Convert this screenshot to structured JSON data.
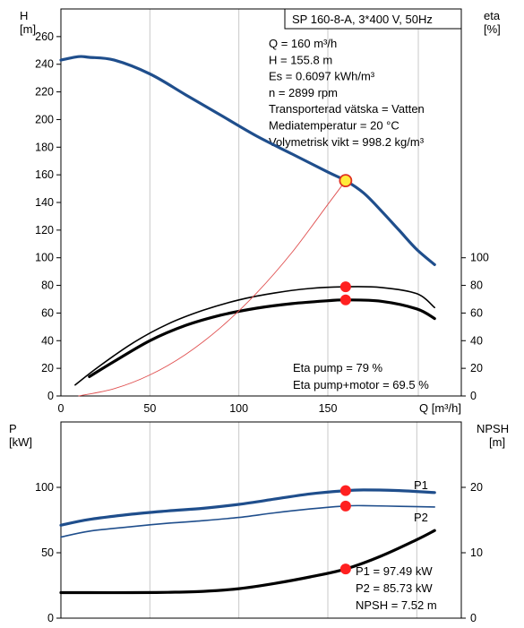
{
  "colors": {
    "grid": "#c8c8c8",
    "head": "#1f4e8c",
    "p1": "#1f4e8c",
    "p2": "#1f4e8c",
    "system": "#e05050",
    "marker": "#ff2020",
    "op_marker_fill": "#ffeb3b",
    "op_marker_stroke": "#e03020"
  },
  "chart_data": [
    {
      "type": "line",
      "title": "SP 160-8-A, 3*400 V, 50Hz",
      "xlabel": "Q [m³/h]",
      "ylabel_left": "H\n[m]",
      "ylabel_right": "eta\n[%]",
      "xlim": [
        0,
        225
      ],
      "xticks": [
        0,
        50,
        100,
        150
      ],
      "ylim_left": [
        0,
        280
      ],
      "yticks_left": [
        0,
        20,
        40,
        60,
        80,
        100,
        120,
        140,
        160,
        180,
        200,
        220,
        240,
        260
      ],
      "ylim_right": [
        0,
        280
      ],
      "yticks_right": [
        0,
        20,
        40,
        60,
        80,
        100
      ],
      "grid": "vertical",
      "series": [
        {
          "key": "head",
          "width": 3.2,
          "x": [
            0,
            10,
            16,
            30,
            50,
            70,
            90,
            110,
            130,
            150,
            160,
            170,
            180,
            190,
            200,
            210
          ],
          "y": [
            243,
            245.5,
            245,
            243,
            233,
            218,
            203,
            188,
            175,
            162,
            155.8,
            147,
            134,
            120,
            106,
            95
          ]
        },
        {
          "key": "eta_pump",
          "width": 1.6,
          "x": [
            8,
            20,
            40,
            60,
            80,
            100,
            120,
            140,
            160,
            180,
            200,
            210
          ],
          "y": [
            8,
            20,
            38,
            52,
            62,
            69.5,
            74.5,
            77.8,
            79,
            78.5,
            74,
            64
          ]
        },
        {
          "key": "eta_total",
          "width": 3.2,
          "x": [
            16,
            30,
            50,
            70,
            90,
            110,
            130,
            150,
            160,
            180,
            200,
            210
          ],
          "y": [
            14,
            25,
            40,
            51,
            58.5,
            63.5,
            66.8,
            68.9,
            69.5,
            68.5,
            63,
            56
          ]
        },
        {
          "key": "system",
          "width": 0.9,
          "x": [
            10,
            30,
            50,
            70,
            90,
            110,
            130,
            150,
            160
          ],
          "y": [
            0,
            5.3,
            15.2,
            30,
            49.8,
            74.5,
            104.1,
            138.6,
            155.8
          ]
        }
      ],
      "markers": [
        {
          "key": "op_marker",
          "x": 160,
          "y": 155.8,
          "style": "operating-point"
        },
        {
          "key": "eta_pump_marker",
          "x": 160,
          "y": 79,
          "style": "dot"
        },
        {
          "key": "eta_total_marker",
          "x": 160,
          "y": 69.5,
          "style": "dot"
        }
      ],
      "info_lines": [
        "Q = 160 m³/h",
        "H = 155.8 m",
        "Es = 0.6097 kWh/m³",
        "n = 2899 rpm",
        "Transporterad vätska = Vatten",
        "Mediatemperatur = 20 °C",
        "Volymetrisk vikt = 998.2 kg/m³"
      ],
      "eta_lines": [
        "Eta pump = 79 %",
        "Eta pump+motor = 69.5 %"
      ]
    },
    {
      "type": "line",
      "xlim": [
        0,
        225
      ],
      "ylabel_left": "P\n[kW]",
      "ylabel_right": "NPSH\n[m]",
      "ylim_left": [
        0,
        150
      ],
      "yticks_left": [
        0,
        50,
        100
      ],
      "ylim_right": [
        0,
        30
      ],
      "yticks_right": [
        0,
        10,
        20
      ],
      "grid": "vertical",
      "series": [
        {
          "key": "p1",
          "name": "P1",
          "axis": "left",
          "width": 3.2,
          "x": [
            0,
            16,
            40,
            60,
            80,
            100,
            120,
            140,
            160,
            170,
            190,
            210
          ],
          "y": [
            71,
            75.5,
            79.5,
            82,
            84,
            87,
            91,
            95,
            97.49,
            98,
            97.5,
            96
          ]
        },
        {
          "key": "p2",
          "name": "P2",
          "axis": "left",
          "width": 1.6,
          "x": [
            0,
            16,
            40,
            60,
            80,
            100,
            120,
            140,
            160,
            170,
            190,
            210
          ],
          "y": [
            62,
            66.5,
            70,
            72.5,
            74.5,
            77,
            80.5,
            83.5,
            85.73,
            86,
            85.5,
            85
          ]
        },
        {
          "key": "npsh",
          "axis": "right",
          "width": 3.2,
          "x": [
            0,
            16,
            40,
            60,
            80,
            100,
            120,
            140,
            160,
            180,
            200,
            210
          ],
          "y": [
            3.9,
            3.9,
            3.9,
            3.95,
            4.1,
            4.5,
            5.3,
            6.3,
            7.52,
            9.5,
            12,
            13.4
          ]
        }
      ],
      "markers": [
        {
          "key": "p1_marker",
          "x": 160,
          "y": 97.49,
          "axis": "left"
        },
        {
          "key": "p2_marker",
          "x": 160,
          "y": 85.73,
          "axis": "left"
        },
        {
          "key": "npsh_marker",
          "x": 160,
          "y": 7.52,
          "axis": "right"
        }
      ],
      "info_lines": [
        "P1 = 97.49 kW",
        "P2 = 85.73 kW",
        "NPSH = 7.52 m"
      ]
    }
  ]
}
